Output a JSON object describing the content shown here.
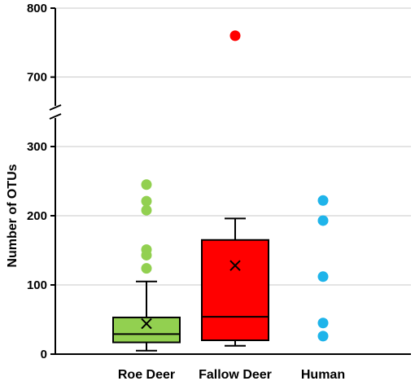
{
  "chart_data": {
    "type": "box",
    "ylabel": "Number of OTUs",
    "y_axis": {
      "broken": true,
      "lower_range": [
        0,
        300
      ],
      "upper_range": [
        650,
        800
      ],
      "ticks": [
        0,
        100,
        200,
        300,
        700,
        800
      ],
      "tick_labels": [
        "0",
        "100",
        "200",
        "300",
        "700",
        "800"
      ]
    },
    "grid": true,
    "categories": [
      "Roe Deer",
      "Fallow Deer",
      "Human"
    ],
    "series": [
      {
        "category": "Roe Deer",
        "color": "#92d050",
        "box": {
          "whisker_low": 5,
          "q1": 17,
          "median": 29,
          "q3": 53,
          "whisker_high": 105,
          "mean": 44
        },
        "outliers": [
          124,
          143,
          151,
          208,
          221,
          245
        ]
      },
      {
        "category": "Fallow Deer",
        "color": "#ff0000",
        "box": {
          "whisker_low": 12,
          "q1": 20,
          "median": 54,
          "q3": 165,
          "whisker_high": 196,
          "mean": 128
        },
        "outliers": [
          760
        ]
      },
      {
        "category": "Human",
        "color": "#1fb4ea",
        "box": null,
        "outliers": [],
        "points": [
          26,
          45,
          112,
          193,
          222
        ]
      }
    ]
  }
}
